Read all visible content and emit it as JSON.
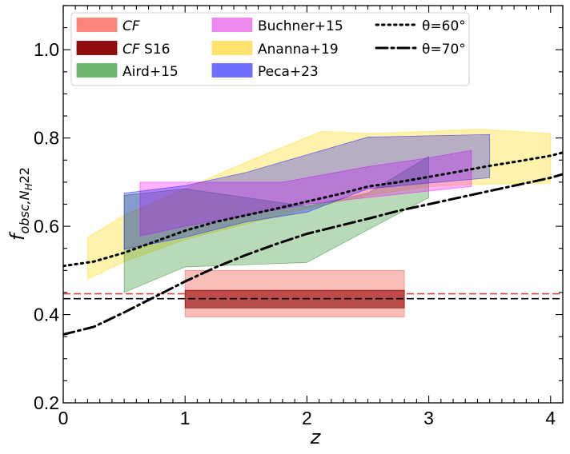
{
  "chart_data": {
    "type": "area",
    "xlabel": "z",
    "ylabel_main": "f",
    "ylabel_sub": "obsc,N",
    "ylabel_subsub": "H",
    "ylabel_tail": "22",
    "xlim": [
      0,
      4.1
    ],
    "ylim": [
      0.2,
      1.1
    ],
    "xticks": [
      0,
      1,
      2,
      3,
      4
    ],
    "xtick_labels": [
      "0",
      "1",
      "2",
      "3",
      "4"
    ],
    "yticks": [
      0.2,
      0.4,
      0.6,
      0.8,
      1.0
    ],
    "ytick_labels": [
      "0.2",
      "0.4",
      "0.6",
      "0.8",
      "1.0"
    ],
    "grid": false,
    "legend_position": "top-left",
    "legend": [
      {
        "key": "cf",
        "label": "CF",
        "italic": "CF",
        "rest": "",
        "kind": "patch",
        "color": "#fa8072"
      },
      {
        "key": "cf_s16",
        "label": "CF S16",
        "italic": "CF",
        "rest": " S16",
        "kind": "patch",
        "color": "#8b0000"
      },
      {
        "key": "aird",
        "label": "Aird+15",
        "italic": "",
        "rest": "Aird+15",
        "kind": "patch",
        "color": "#66b266"
      },
      {
        "key": "buchner",
        "label": "Buchner+15",
        "italic": "",
        "rest": "Buchner+15",
        "kind": "patch",
        "color": "#ee82ee"
      },
      {
        "key": "ananna",
        "label": "Ananna+19",
        "italic": "",
        "rest": "Ananna+19",
        "kind": "patch",
        "color": "#ffe066"
      },
      {
        "key": "peca",
        "label": "Peca+23",
        "italic": "",
        "rest": "Peca+23",
        "kind": "patch",
        "color": "#6666ff"
      },
      {
        "key": "theta60",
        "label": "θ=60°",
        "italic": "",
        "rest": "θ=60°",
        "kind": "line",
        "dash": "dotted"
      },
      {
        "key": "theta70",
        "label": "θ=70°",
        "italic": "",
        "rest": "θ=70°",
        "kind": "line",
        "dash": "dashdot"
      }
    ],
    "bands": [
      {
        "key": "ananna",
        "color": "#ffd700",
        "opacity": 0.32,
        "upper": [
          [
            0.2,
            0.575
          ],
          [
            0.5,
            0.625
          ],
          [
            1.0,
            0.685
          ],
          [
            1.5,
            0.745
          ],
          [
            2.12,
            0.815
          ],
          [
            2.5,
            0.81
          ],
          [
            3.0,
            0.815
          ],
          [
            3.4,
            0.82
          ],
          [
            4.0,
            0.81
          ]
        ],
        "lower": [
          [
            0.2,
            0.48
          ],
          [
            0.5,
            0.52
          ],
          [
            1.0,
            0.57
          ],
          [
            1.5,
            0.605
          ],
          [
            2.0,
            0.64
          ],
          [
            2.5,
            0.67
          ],
          [
            3.0,
            0.69
          ],
          [
            3.4,
            0.695
          ],
          [
            4.0,
            0.698
          ]
        ]
      },
      {
        "key": "aird",
        "color": "#228b22",
        "opacity": 0.32,
        "upper": [
          [
            0.5,
            0.67
          ],
          [
            1.0,
            0.685
          ],
          [
            1.5,
            0.665
          ],
          [
            2.0,
            0.645
          ],
          [
            2.5,
            0.675
          ],
          [
            3.0,
            0.758
          ]
        ],
        "lower": [
          [
            0.5,
            0.45
          ],
          [
            1.0,
            0.508
          ],
          [
            1.5,
            0.513
          ],
          [
            2.0,
            0.518
          ],
          [
            2.5,
            0.592
          ],
          [
            3.0,
            0.665
          ]
        ]
      },
      {
        "key": "buchner",
        "color": "#ff00ff",
        "opacity": 0.3,
        "upper": [
          [
            0.63,
            0.7
          ],
          [
            1.0,
            0.7
          ],
          [
            1.5,
            0.7
          ],
          [
            1.8,
            0.7
          ],
          [
            2.5,
            0.735
          ],
          [
            3.0,
            0.755
          ],
          [
            3.35,
            0.772
          ]
        ],
        "lower": [
          [
            0.63,
            0.578
          ],
          [
            1.0,
            0.6
          ],
          [
            1.5,
            0.625
          ],
          [
            2.0,
            0.65
          ],
          [
            2.5,
            0.665
          ],
          [
            3.0,
            0.68
          ],
          [
            3.35,
            0.69
          ]
        ]
      },
      {
        "key": "peca",
        "color": "#0000ff",
        "opacity": 0.28,
        "upper": [
          [
            0.5,
            0.675
          ],
          [
            1.0,
            0.692
          ],
          [
            1.5,
            0.722
          ],
          [
            2.0,
            0.762
          ],
          [
            2.5,
            0.802
          ],
          [
            3.0,
            0.805
          ],
          [
            3.5,
            0.808
          ]
        ],
        "lower": [
          [
            0.5,
            0.548
          ],
          [
            1.0,
            0.575
          ],
          [
            1.5,
            0.61
          ],
          [
            2.0,
            0.632
          ],
          [
            2.5,
            0.685
          ],
          [
            3.0,
            0.698
          ],
          [
            3.5,
            0.71
          ]
        ]
      },
      {
        "key": "cf",
        "color": "#f25c4f",
        "opacity": 0.4,
        "upper": [
          [
            1.0,
            0.5
          ],
          [
            2.8,
            0.5
          ]
        ],
        "lower": [
          [
            1.0,
            0.395
          ],
          [
            2.8,
            0.395
          ]
        ]
      },
      {
        "key": "cf_s16",
        "color": "#8b0000",
        "opacity": 0.6,
        "upper": [
          [
            1.0,
            0.455
          ],
          [
            2.8,
            0.455
          ]
        ],
        "lower": [
          [
            1.0,
            0.415
          ],
          [
            2.8,
            0.415
          ]
        ]
      }
    ],
    "hlines": [
      {
        "key": "cf_mean",
        "y": 0.447,
        "color": "#e04040",
        "dash": "dashed"
      },
      {
        "key": "cf_s16_mean",
        "y": 0.436,
        "color": "#000000",
        "dash": "dashed"
      }
    ],
    "series": [
      {
        "key": "theta60",
        "dash": "dotted",
        "points": [
          [
            0,
            0.51
          ],
          [
            0.25,
            0.52
          ],
          [
            0.5,
            0.54
          ],
          [
            0.75,
            0.565
          ],
          [
            1.0,
            0.59
          ],
          [
            1.25,
            0.61
          ],
          [
            1.5,
            0.625
          ],
          [
            1.75,
            0.64
          ],
          [
            2.0,
            0.656
          ],
          [
            2.25,
            0.672
          ],
          [
            2.5,
            0.69
          ],
          [
            2.75,
            0.7
          ],
          [
            3.0,
            0.712
          ],
          [
            3.25,
            0.724
          ],
          [
            3.5,
            0.737
          ],
          [
            3.75,
            0.748
          ],
          [
            4.0,
            0.76
          ],
          [
            4.1,
            0.767
          ]
        ]
      },
      {
        "key": "theta70",
        "dash": "dashdot",
        "points": [
          [
            0,
            0.355
          ],
          [
            0.25,
            0.372
          ],
          [
            0.5,
            0.405
          ],
          [
            0.75,
            0.44
          ],
          [
            1.0,
            0.475
          ],
          [
            1.25,
            0.507
          ],
          [
            1.5,
            0.535
          ],
          [
            1.75,
            0.56
          ],
          [
            2.0,
            0.583
          ],
          [
            2.25,
            0.6
          ],
          [
            2.5,
            0.617
          ],
          [
            2.75,
            0.635
          ],
          [
            3.0,
            0.65
          ],
          [
            3.25,
            0.665
          ],
          [
            3.5,
            0.68
          ],
          [
            3.75,
            0.695
          ],
          [
            4.0,
            0.71
          ],
          [
            4.1,
            0.718
          ]
        ]
      }
    ]
  }
}
